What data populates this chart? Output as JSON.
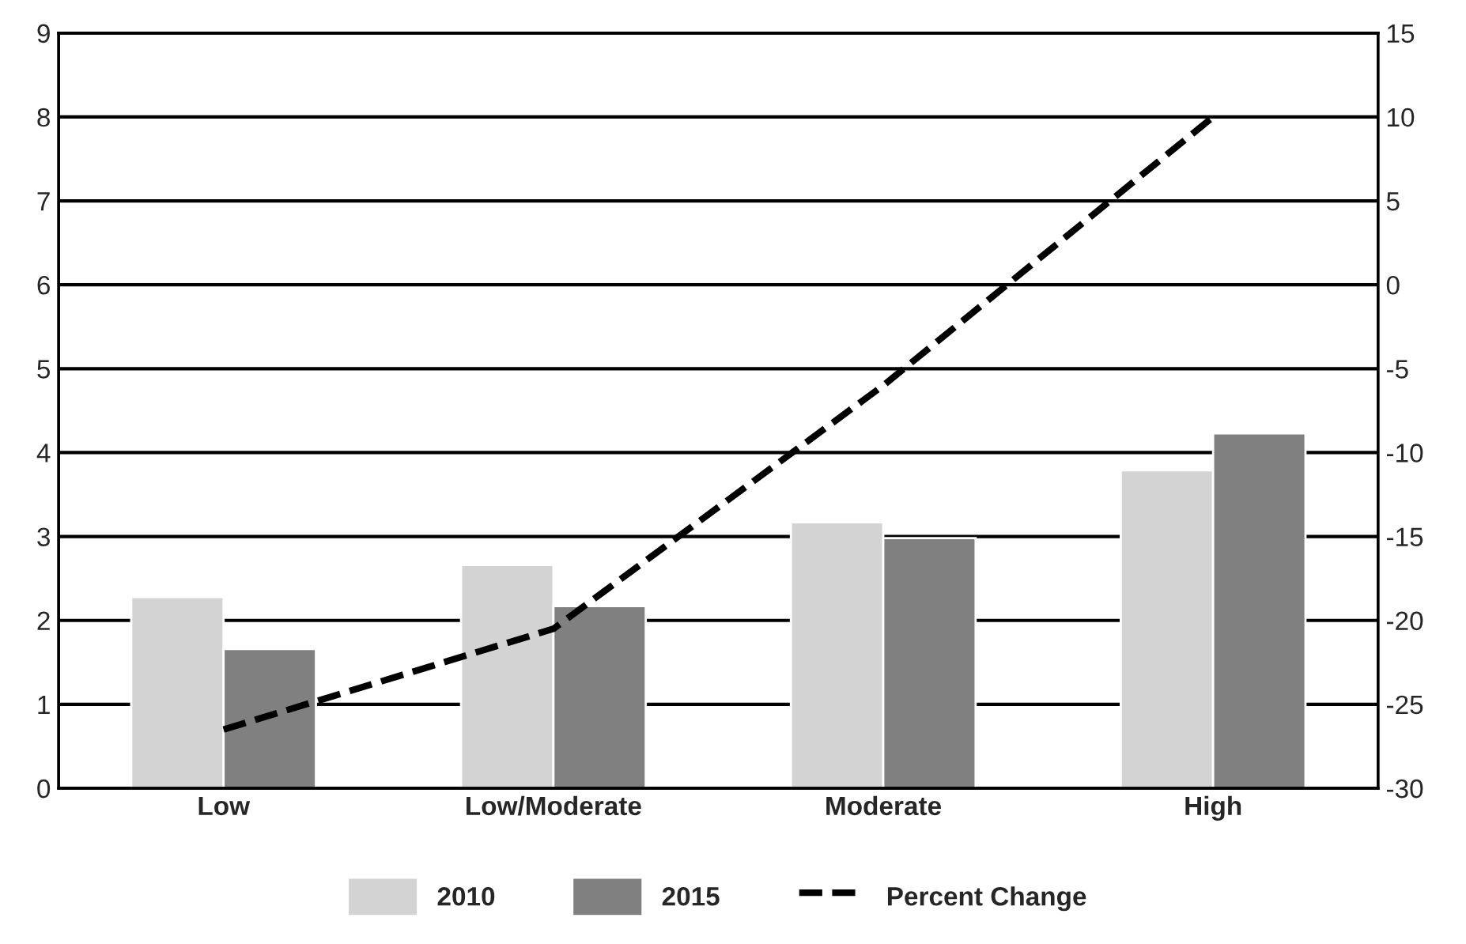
{
  "chart_data": {
    "type": "bar",
    "categories": [
      "Low",
      "Low/Moderate",
      "Moderate",
      "High"
    ],
    "series": [
      {
        "name": "2010",
        "color": "#d3d3d3",
        "values": [
          2.28,
          2.66,
          3.17,
          3.79
        ]
      },
      {
        "name": "2015",
        "color": "#808080",
        "values": [
          1.66,
          2.17,
          2.98,
          4.23
        ]
      },
      {
        "name": "Percent Change",
        "type": "line",
        "axis": "y2",
        "color": "#000000",
        "line_style": "dashed",
        "values": [
          -26.5,
          -20.5,
          -6,
          10
        ]
      }
    ],
    "ylim": [
      0,
      9
    ],
    "yticks": [
      0,
      1,
      2,
      3,
      4,
      5,
      6,
      7,
      8,
      9
    ],
    "y2lim": [
      -30,
      15
    ],
    "y2ticks": [
      -30,
      -25,
      -20,
      -15,
      -10,
      -5,
      0,
      5,
      10,
      15
    ],
    "grid": "y",
    "legend": "bottom"
  }
}
